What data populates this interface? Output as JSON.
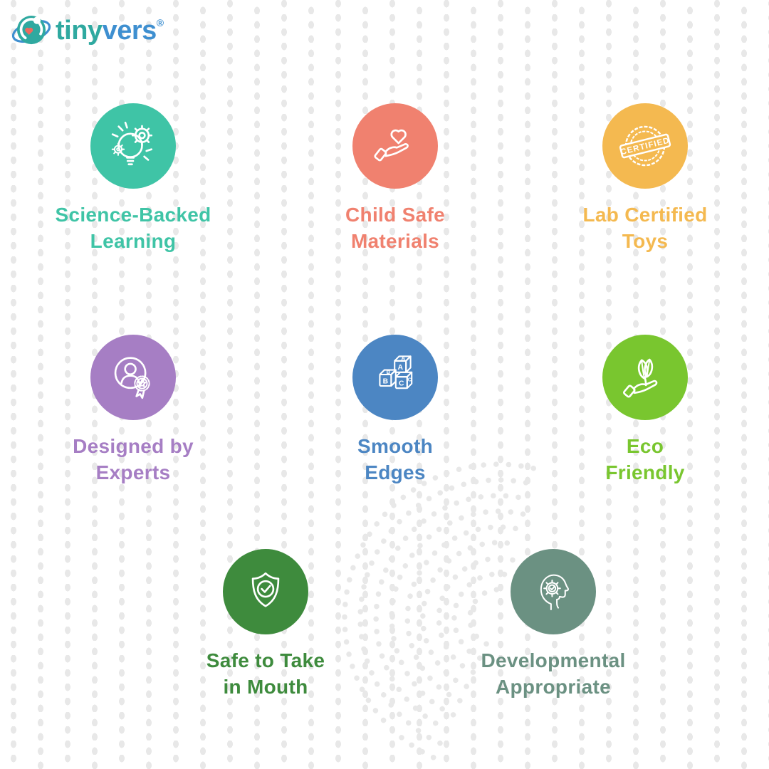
{
  "brand": {
    "name_part1": "tiny",
    "name_part2": "vers",
    "registered": "®",
    "teal": "#2fa9a0",
    "blue": "#3e8fd0",
    "heart_color": "#ee6a5f"
  },
  "background": {
    "dot_color": "#e8e8e8",
    "canvas_color": "#ffffff"
  },
  "icon_texts": {
    "stamp": "CERTIFIED",
    "blocks": [
      "A",
      "B",
      "C"
    ]
  },
  "badges": [
    {
      "id": "science-backed-learning",
      "icon": "bulb-gear-icon",
      "label_line1": "Science-Backed",
      "label_line2": "Learning",
      "color": "#3fc4a6"
    },
    {
      "id": "child-safe-materials",
      "icon": "hand-heart-icon",
      "label_line1": "Child Safe",
      "label_line2": "Materials",
      "color": "#f0816f"
    },
    {
      "id": "lab-certified-toys",
      "icon": "certified-stamp-icon",
      "label_line1": "Lab Certified",
      "label_line2": "Toys",
      "color": "#f4b950"
    },
    {
      "id": "designed-by-experts",
      "icon": "expert-badge-icon",
      "label_line1": "Designed by",
      "label_line2": "Experts",
      "color": "#a67ec4"
    },
    {
      "id": "smooth-edges",
      "icon": "abc-blocks-icon",
      "label_line1": "Smooth",
      "label_line2": "Edges",
      "color": "#4c86c3"
    },
    {
      "id": "eco-friendly",
      "icon": "plant-hand-icon",
      "label_line1": "Eco",
      "label_line2": "Friendly",
      "color": "#79c62f"
    },
    {
      "id": "safe-to-take-in-mouth",
      "icon": "shield-check-icon",
      "label_line1": "Safe to Take",
      "label_line2": "in Mouth",
      "color": "#3e8b3d"
    },
    {
      "id": "developmental-appropriate",
      "icon": "head-gear-icon",
      "label_line1": "Developmental",
      "label_line2": "Appropriate",
      "color": "#6b9182"
    }
  ]
}
